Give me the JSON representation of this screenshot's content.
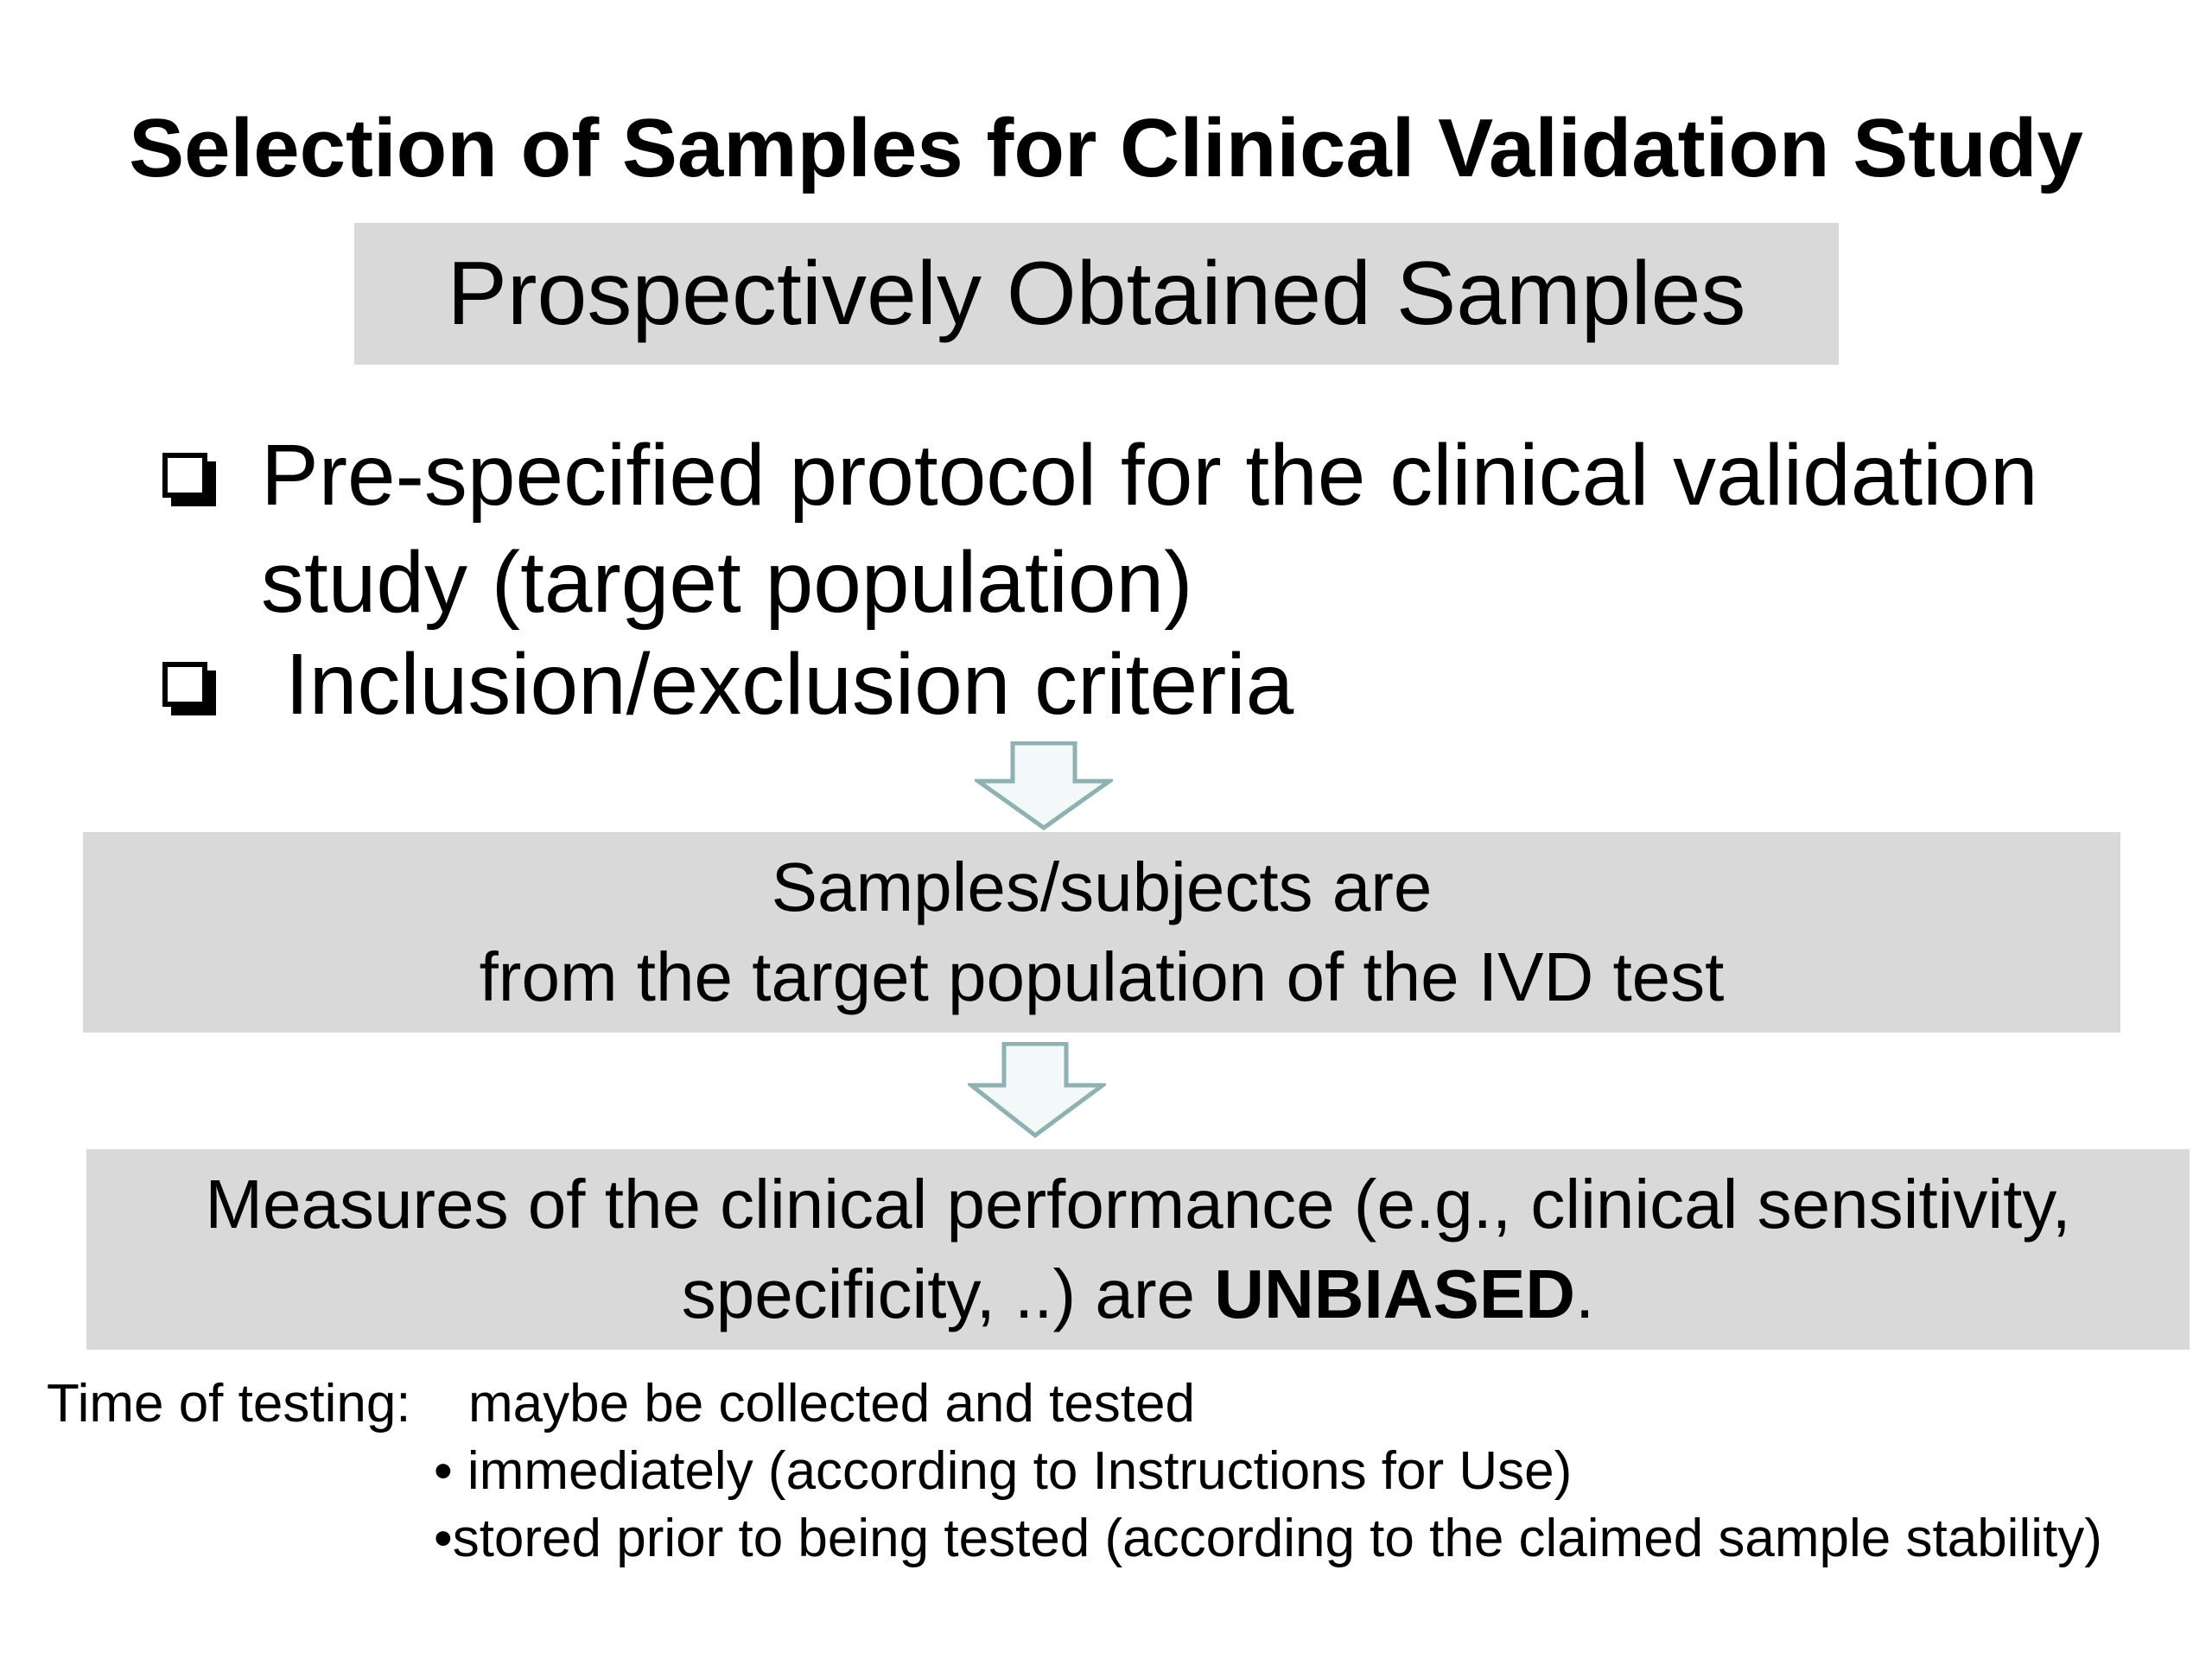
{
  "title": "Selection of Samples for Clinical Validation Study",
  "subtitle": "Prospectively Obtained Samples",
  "bullets": [
    {
      "line1": "Pre-specified protocol for the clinical validation",
      "line2": "study (target population)"
    },
    {
      "line1": "Inclusion/exclusion criteria"
    }
  ],
  "middle_box": {
    "line1": "Samples/subjects are",
    "line2": "from the target population of the IVD test"
  },
  "bottom_box": {
    "line1": "Measures of the clinical performance (e.g., clinical sensitivity,",
    "line2_prefix": "specificity, ..) are ",
    "line2_bold": "UNBIASED",
    "line2_suffix": "."
  },
  "note": {
    "label": "Time of testing:",
    "intro": "maybe be collected and tested",
    "items": [
      "• immediately (according to Instructions for Use)",
      "•stored prior to being tested (according to the claimed sample stability)"
    ]
  },
  "colors": {
    "box_fill": "#d9d9d9",
    "arrow_fill": "#f3f8f8",
    "arrow_stroke": "#8fb1b1"
  }
}
